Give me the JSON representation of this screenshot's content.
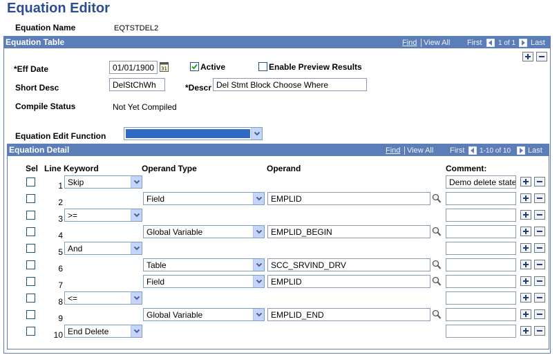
{
  "header": {
    "title": "Equation Editor",
    "name_label": "Equation Name",
    "name_value": "EQTSTDEL2"
  },
  "equation_table": {
    "title": "Equation Table",
    "nav": {
      "find": "Find",
      "view_all": "View All",
      "first": "First",
      "count": "1 of 1",
      "last": "Last"
    },
    "fields": {
      "eff_date_label": "*Eff Date",
      "eff_date": "01/01/1900",
      "active_label": "Active",
      "active": true,
      "preview_label": "Enable Preview Results",
      "preview": false,
      "short_desc_label": "Short Desc",
      "short_desc": "DelStChWh",
      "descr_label": "*Descr",
      "descr": "Del Stmt Block Choose Where",
      "compile_status_label": "Compile Status",
      "compile_status": "Not Yet Compiled",
      "edit_function_label": "Equation Edit Function"
    }
  },
  "equation_detail": {
    "title": "Equation Detail",
    "nav": {
      "find": "Find",
      "view_all": "View All",
      "first": "First",
      "count": "1-10 of 10",
      "last": "Last"
    },
    "columns": {
      "sel": "Sel",
      "line": "Line",
      "keyword": "Keyword",
      "operand_type": "Operand Type",
      "operand": "Operand",
      "comment": "Comment:"
    },
    "rows": [
      {
        "line": 1,
        "keyword": "Skip",
        "comment": "Demo delete state"
      },
      {
        "line": 2,
        "operand_type": "Field",
        "operand": "EMPLID"
      },
      {
        "line": 3,
        "keyword": ">="
      },
      {
        "line": 4,
        "operand_type": "Global Variable",
        "operand": "EMPLID_BEGIN"
      },
      {
        "line": 5,
        "keyword": "And"
      },
      {
        "line": 6,
        "operand_type": "Table",
        "operand": "SCC_SRVIND_DRV"
      },
      {
        "line": 7,
        "operand_type": "Field",
        "operand": "EMPLID"
      },
      {
        "line": 8,
        "keyword": "<="
      },
      {
        "line": 9,
        "operand_type": "Global Variable",
        "operand": "EMPLID_END"
      },
      {
        "line": 10,
        "keyword": "End Delete"
      }
    ]
  }
}
